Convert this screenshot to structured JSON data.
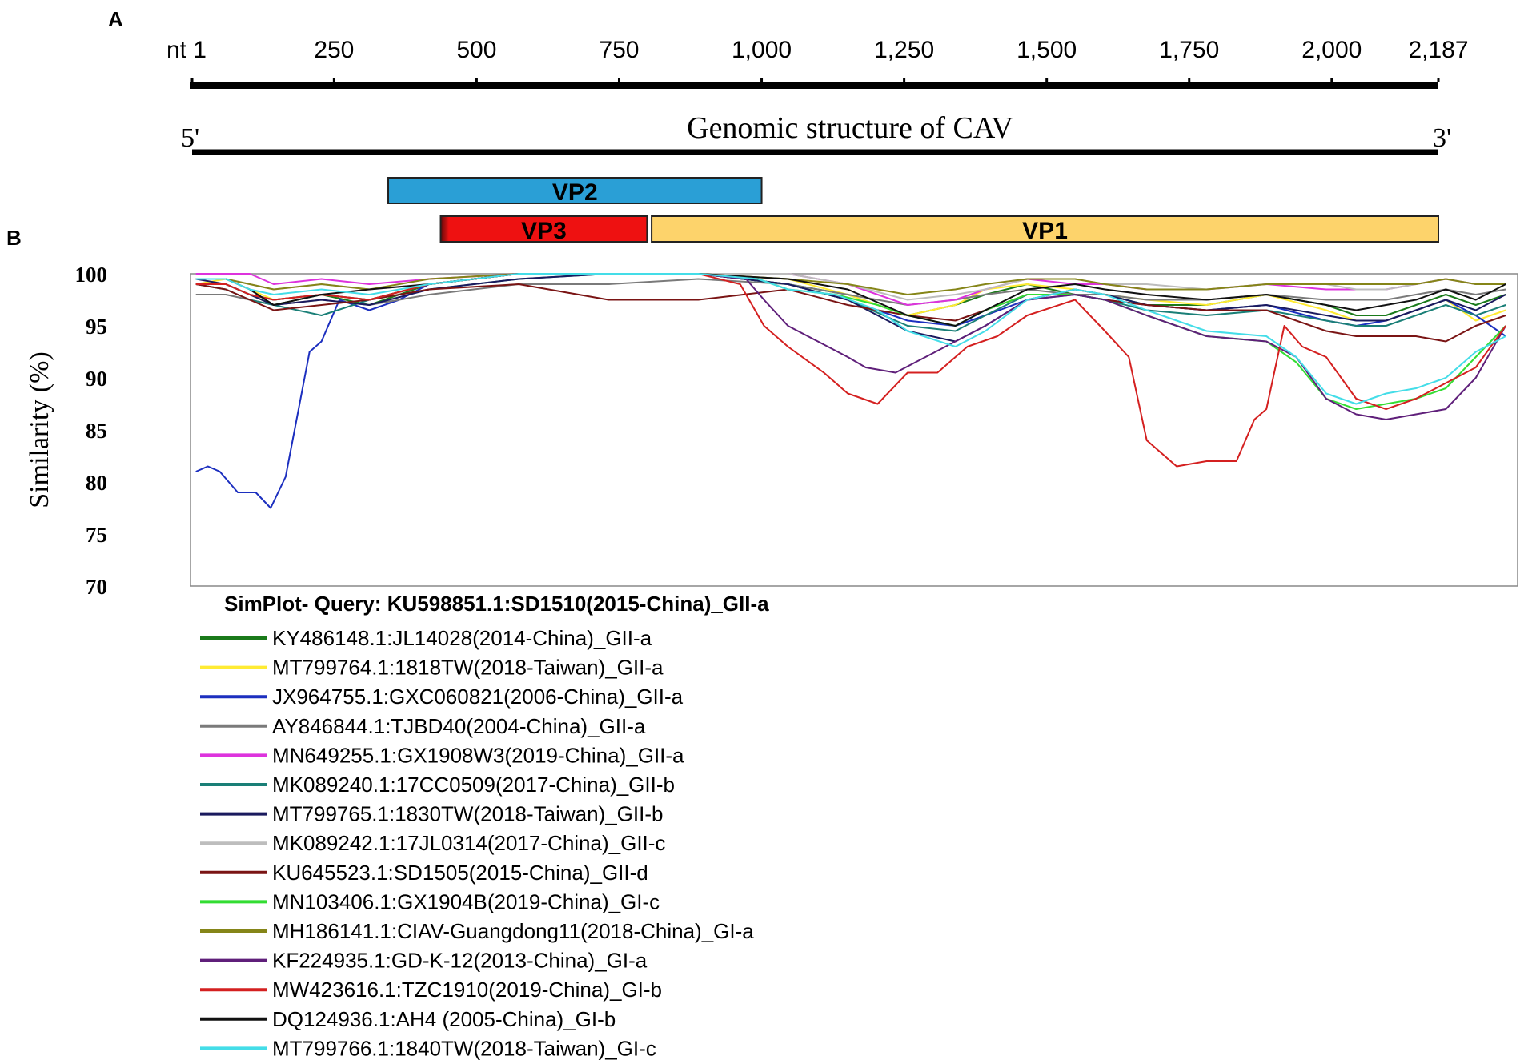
{
  "panels": {
    "a": "A",
    "b": "B"
  },
  "genome": {
    "ticks": [
      "nt 1",
      "250",
      "500",
      "750",
      "1,000",
      "1,250",
      "1,500",
      "1,750",
      "2,000",
      "2,187"
    ],
    "tick_positions": [
      1,
      250,
      500,
      750,
      1000,
      1250,
      1500,
      1750,
      2000,
      2187
    ],
    "title": "Genomic structure of CAV",
    "five_prime": "5'",
    "three_prime": "3'",
    "genes": [
      {
        "name": "VP2",
        "start": 345,
        "end": 1000,
        "color": "#2a9fd6"
      },
      {
        "name": "VP3",
        "start": 437,
        "end": 799,
        "color": "#ee1111"
      },
      {
        "name": "VP1",
        "start": 807,
        "end": 2187,
        "color": "#fdd36b"
      }
    ]
  },
  "chart_data": {
    "type": "line",
    "ylabel": "Similarity (%)",
    "ylim": [
      70,
      100
    ],
    "yticks": [
      "100",
      "95",
      "90",
      "85",
      "80",
      "75",
      "70"
    ],
    "ytick_values": [
      100,
      95,
      90,
      85,
      80,
      75,
      70
    ],
    "xlim": [
      1,
      2220
    ],
    "title": "SimPlot- Query: KU598851.1:SD1510(2015-China)_GII-a",
    "series": [
      {
        "name": "KY486148.1:JL14028(2014-China)_GII-a",
        "color": "#1a7a1a",
        "x": [
          10,
          60,
          100,
          140,
          220,
          300,
          400,
          550,
          700,
          850,
          1000,
          1100,
          1200,
          1280,
          1330,
          1400,
          1480,
          1530,
          1600,
          1700,
          1800,
          1900,
          1950,
          2000,
          2050,
          2100,
          2150,
          2200
        ],
        "y": [
          99,
          99,
          98,
          97,
          98,
          97,
          99,
          100,
          100,
          100,
          99,
          98,
          96,
          97,
          98,
          99,
          98,
          98,
          97,
          97,
          98,
          97,
          96,
          96,
          97,
          98,
          97,
          98
        ]
      },
      {
        "name": "MT799764.1:1818TW(2018-Taiwan)_GII-a",
        "color": "#ffeb33",
        "x": [
          10,
          60,
          100,
          140,
          220,
          300,
          400,
          550,
          700,
          850,
          1000,
          1100,
          1200,
          1280,
          1330,
          1400,
          1480,
          1530,
          1600,
          1700,
          1800,
          1900,
          1950,
          2000,
          2050,
          2100,
          2150,
          2200
        ],
        "y": [
          99,
          99.5,
          98.5,
          97.5,
          98,
          97.5,
          99,
          100,
          100,
          100,
          99.5,
          98,
          96,
          97,
          98.5,
          99,
          98.5,
          98,
          97.5,
          97,
          98,
          96.5,
          95.5,
          95.5,
          96.5,
          97.5,
          95.5,
          96.5
        ]
      },
      {
        "name": "JX964755.1:GXC060821(2006-China)_GII-a",
        "color": "#1c2fbf",
        "x": [
          10,
          30,
          50,
          80,
          110,
          135,
          160,
          200,
          220,
          250,
          300,
          350,
          400,
          550,
          700,
          850,
          1000,
          1100,
          1200,
          1280,
          1330,
          1400,
          1480,
          1530,
          1600,
          1700,
          1800,
          1900,
          1950,
          2000,
          2050,
          2100,
          2150,
          2200
        ],
        "y": [
          81,
          81.5,
          81,
          79,
          79,
          77.5,
          80.5,
          92.5,
          93.5,
          97.5,
          96.5,
          97.5,
          99,
          100,
          100,
          100,
          99,
          97.5,
          95.5,
          95,
          96,
          97.5,
          98,
          97.5,
          97,
          96.5,
          97,
          95.5,
          95,
          95.5,
          96.5,
          97.5,
          96,
          94
        ]
      },
      {
        "name": "AY846844.1:TJBD40(2004-China)_GII-a",
        "color": "#7a7a7a",
        "x": [
          10,
          60,
          100,
          140,
          220,
          300,
          400,
          550,
          700,
          850,
          1000,
          1100,
          1200,
          1280,
          1330,
          1400,
          1480,
          1530,
          1600,
          1700,
          1800,
          1900,
          1950,
          2000,
          2050,
          2100,
          2150,
          2200
        ],
        "y": [
          98,
          98,
          97.5,
          97,
          97.5,
          97,
          98,
          99,
          99,
          99.5,
          99,
          98,
          97,
          97.5,
          98,
          98.5,
          98,
          98,
          97.5,
          97.5,
          98,
          97.5,
          97.5,
          97.5,
          98,
          98.5,
          98,
          98.5
        ]
      },
      {
        "name": "MN649255.1:GX1908W3(2019-China)_GII-a",
        "color": "#dd33dd",
        "x": [
          10,
          60,
          100,
          140,
          220,
          300,
          400,
          550,
          700,
          850,
          1000,
          1100,
          1200,
          1280,
          1330,
          1400,
          1480,
          1530,
          1600,
          1700,
          1800,
          1900,
          1950,
          2000,
          2050,
          2100,
          2150,
          2200
        ],
        "y": [
          100,
          100,
          100,
          99,
          99.5,
          99,
          99.5,
          100,
          100,
          100,
          100,
          99,
          97,
          97.5,
          98.5,
          99.5,
          99,
          99,
          98.5,
          98.5,
          99,
          98.5,
          98.5,
          98.5,
          99,
          99.5,
          99,
          99
        ]
      },
      {
        "name": "MK089240.1:17CC0509(2017-China)_GII-b",
        "color": "#1a7f77",
        "x": [
          10,
          60,
          100,
          140,
          220,
          300,
          400,
          550,
          700,
          850,
          1000,
          1100,
          1200,
          1280,
          1330,
          1400,
          1480,
          1530,
          1600,
          1700,
          1800,
          1900,
          1950,
          2000,
          2050,
          2100,
          2150,
          2200
        ],
        "y": [
          99,
          98.5,
          97.5,
          97,
          96,
          97.5,
          98.5,
          99.5,
          100,
          100,
          99,
          97.5,
          95,
          94.5,
          96,
          98,
          98,
          97.5,
          96.5,
          96,
          96.5,
          95.5,
          95,
          95,
          96,
          97,
          96,
          97
        ]
      },
      {
        "name": "MT799765.1:1830TW(2018-Taiwan)_GII-b",
        "color": "#1a1a5e",
        "x": [
          10,
          60,
          100,
          140,
          220,
          300,
          400,
          550,
          700,
          850,
          1000,
          1100,
          1200,
          1280,
          1330,
          1400,
          1480,
          1530,
          1600,
          1700,
          1800,
          1900,
          1950,
          2000,
          2050,
          2100,
          2150,
          2200
        ],
        "y": [
          99.5,
          99,
          98,
          97,
          97.5,
          97,
          98.5,
          99.5,
          100,
          100,
          99,
          97.5,
          94.5,
          93.5,
          95,
          97.5,
          98.5,
          98,
          97,
          96.5,
          97,
          96,
          95.5,
          95.5,
          96.5,
          97.5,
          96.5,
          98
        ]
      },
      {
        "name": "MK089242.1:17JL0314(2017-China)_GII-c",
        "color": "#bdbdbd",
        "x": [
          10,
          60,
          100,
          140,
          220,
          300,
          400,
          550,
          700,
          850,
          1000,
          1100,
          1200,
          1280,
          1330,
          1400,
          1480,
          1530,
          1600,
          1700,
          1800,
          1900,
          1950,
          2000,
          2050,
          2100,
          2150,
          2200
        ],
        "y": [
          99.5,
          99.5,
          99,
          98.5,
          99,
          98.5,
          99,
          100,
          100,
          100,
          100,
          99,
          97.5,
          98,
          98.5,
          99.5,
          99.5,
          99,
          99,
          98.5,
          99,
          99,
          98.5,
          98.5,
          99,
          99.5,
          99,
          99
        ]
      },
      {
        "name": "KU645523.1:SD1505(2015-China)_GII-d",
        "color": "#7a1414",
        "x": [
          10,
          60,
          100,
          140,
          220,
          300,
          400,
          550,
          700,
          850,
          1000,
          1100,
          1200,
          1280,
          1330,
          1400,
          1480,
          1530,
          1600,
          1700,
          1800,
          1900,
          1950,
          2000,
          2050,
          2100,
          2150,
          2200
        ],
        "y": [
          99,
          98.5,
          97.5,
          96.5,
          97,
          97.5,
          98.5,
          99,
          97.5,
          97.5,
          98.5,
          97,
          96,
          95.5,
          96.5,
          98,
          98,
          97.5,
          97,
          96.5,
          96.5,
          94.5,
          94,
          94,
          94,
          93.5,
          95,
          96
        ]
      },
      {
        "name": "MN103406.1:GX1904B(2019-China)_GI-c",
        "color": "#33dd33",
        "x": [
          10,
          60,
          100,
          140,
          220,
          300,
          400,
          550,
          700,
          850,
          950,
          1000,
          1080,
          1150,
          1200,
          1280,
          1330,
          1400,
          1480,
          1530,
          1600,
          1700,
          1800,
          1850,
          1900,
          1950,
          2000,
          2050,
          2100,
          2150,
          2200
        ],
        "y": [
          99,
          99,
          98,
          97.5,
          98,
          97.5,
          99,
          100,
          100,
          100,
          99.5,
          98.5,
          98,
          97,
          96,
          95,
          96.5,
          98,
          98,
          97.5,
          96,
          94,
          93.5,
          91.5,
          88,
          87,
          87.5,
          88,
          89,
          92,
          95
        ]
      },
      {
        "name": "MH186141.1:CIAV-Guangdong11(2018-China)_GI-a",
        "color": "#858518",
        "x": [
          10,
          60,
          100,
          140,
          220,
          300,
          400,
          550,
          700,
          850,
          1000,
          1100,
          1200,
          1280,
          1330,
          1400,
          1480,
          1530,
          1600,
          1700,
          1800,
          1900,
          1950,
          2000,
          2050,
          2100,
          2150,
          2200
        ],
        "y": [
          99.5,
          99.5,
          99,
          98.5,
          99,
          98.5,
          99.5,
          100,
          100,
          100,
          99.5,
          99,
          98,
          98.5,
          99,
          99.5,
          99.5,
          99,
          98.5,
          98.5,
          99,
          99,
          99,
          99,
          99,
          99.5,
          99,
          99
        ]
      },
      {
        "name": "KF224935.1:GD-K-12(2013-China)_GI-a",
        "color": "#5f1f7a",
        "x": [
          10,
          60,
          100,
          140,
          220,
          300,
          400,
          550,
          700,
          850,
          930,
          960,
          1000,
          1050,
          1100,
          1130,
          1180,
          1230,
          1280,
          1330,
          1400,
          1480,
          1530,
          1600,
          1700,
          1800,
          1850,
          1900,
          1950,
          2000,
          2050,
          2100,
          2150,
          2200
        ],
        "y": [
          99,
          99,
          98,
          97.5,
          98,
          97.5,
          99,
          100,
          100,
          100,
          99.5,
          97.5,
          95,
          93.5,
          92,
          91,
          90.5,
          92,
          93.5,
          95,
          97.5,
          98,
          97.5,
          96,
          94,
          93.5,
          92,
          88,
          86.5,
          86,
          86.5,
          87,
          90,
          95
        ]
      },
      {
        "name": "MW423616.1:TZC1910(2019-China)_GI-b",
        "color": "#d42020",
        "x": [
          10,
          60,
          100,
          140,
          220,
          300,
          400,
          550,
          700,
          850,
          920,
          960,
          1000,
          1060,
          1100,
          1150,
          1200,
          1250,
          1300,
          1350,
          1400,
          1480,
          1530,
          1570,
          1600,
          1650,
          1700,
          1750,
          1780,
          1800,
          1830,
          1860,
          1900,
          1950,
          2000,
          2050,
          2100,
          2150,
          2200
        ],
        "y": [
          99,
          99,
          98,
          97.5,
          98,
          97.5,
          99,
          100,
          100,
          100,
          99,
          95,
          93,
          90.5,
          88.5,
          87.5,
          90.5,
          90.5,
          93,
          94,
          96,
          97.5,
          94.5,
          92,
          84,
          81.5,
          82,
          82,
          86,
          87,
          95,
          93,
          92,
          88,
          87,
          88,
          89.5,
          91,
          95
        ]
      },
      {
        "name": "DQ124936.1:AH4 (2005-China)_GI-b",
        "color": "#111111",
        "x": [
          10,
          60,
          100,
          140,
          220,
          300,
          400,
          550,
          700,
          850,
          1000,
          1100,
          1200,
          1280,
          1330,
          1400,
          1480,
          1530,
          1600,
          1700,
          1800,
          1900,
          1950,
          2000,
          2050,
          2100,
          2150,
          2200
        ],
        "y": [
          99.5,
          99.5,
          98.5,
          97,
          98,
          98.5,
          99,
          100,
          100,
          100,
          99.5,
          98.5,
          96,
          95,
          96.5,
          98.5,
          99,
          98.5,
          98,
          97.5,
          98,
          97,
          96.5,
          97,
          97.5,
          98.5,
          97.5,
          99
        ]
      },
      {
        "name": "MT799766.1:1840TW(2018-Taiwan)_GI-c",
        "color": "#44dde8",
        "x": [
          10,
          60,
          100,
          140,
          220,
          300,
          400,
          550,
          700,
          850,
          950,
          1000,
          1080,
          1150,
          1200,
          1280,
          1330,
          1400,
          1480,
          1530,
          1600,
          1700,
          1800,
          1850,
          1900,
          1950,
          2000,
          2050,
          2100,
          2150,
          2200
        ],
        "y": [
          99.5,
          99.5,
          98.5,
          98,
          98.5,
          98,
          99,
          100,
          100,
          100,
          99.5,
          98.5,
          98,
          96.5,
          94.5,
          93,
          94.5,
          97.5,
          98.5,
          98,
          96.5,
          94.5,
          94,
          92,
          88.5,
          87.5,
          88.5,
          89,
          90,
          92.5,
          94
        ]
      }
    ]
  }
}
